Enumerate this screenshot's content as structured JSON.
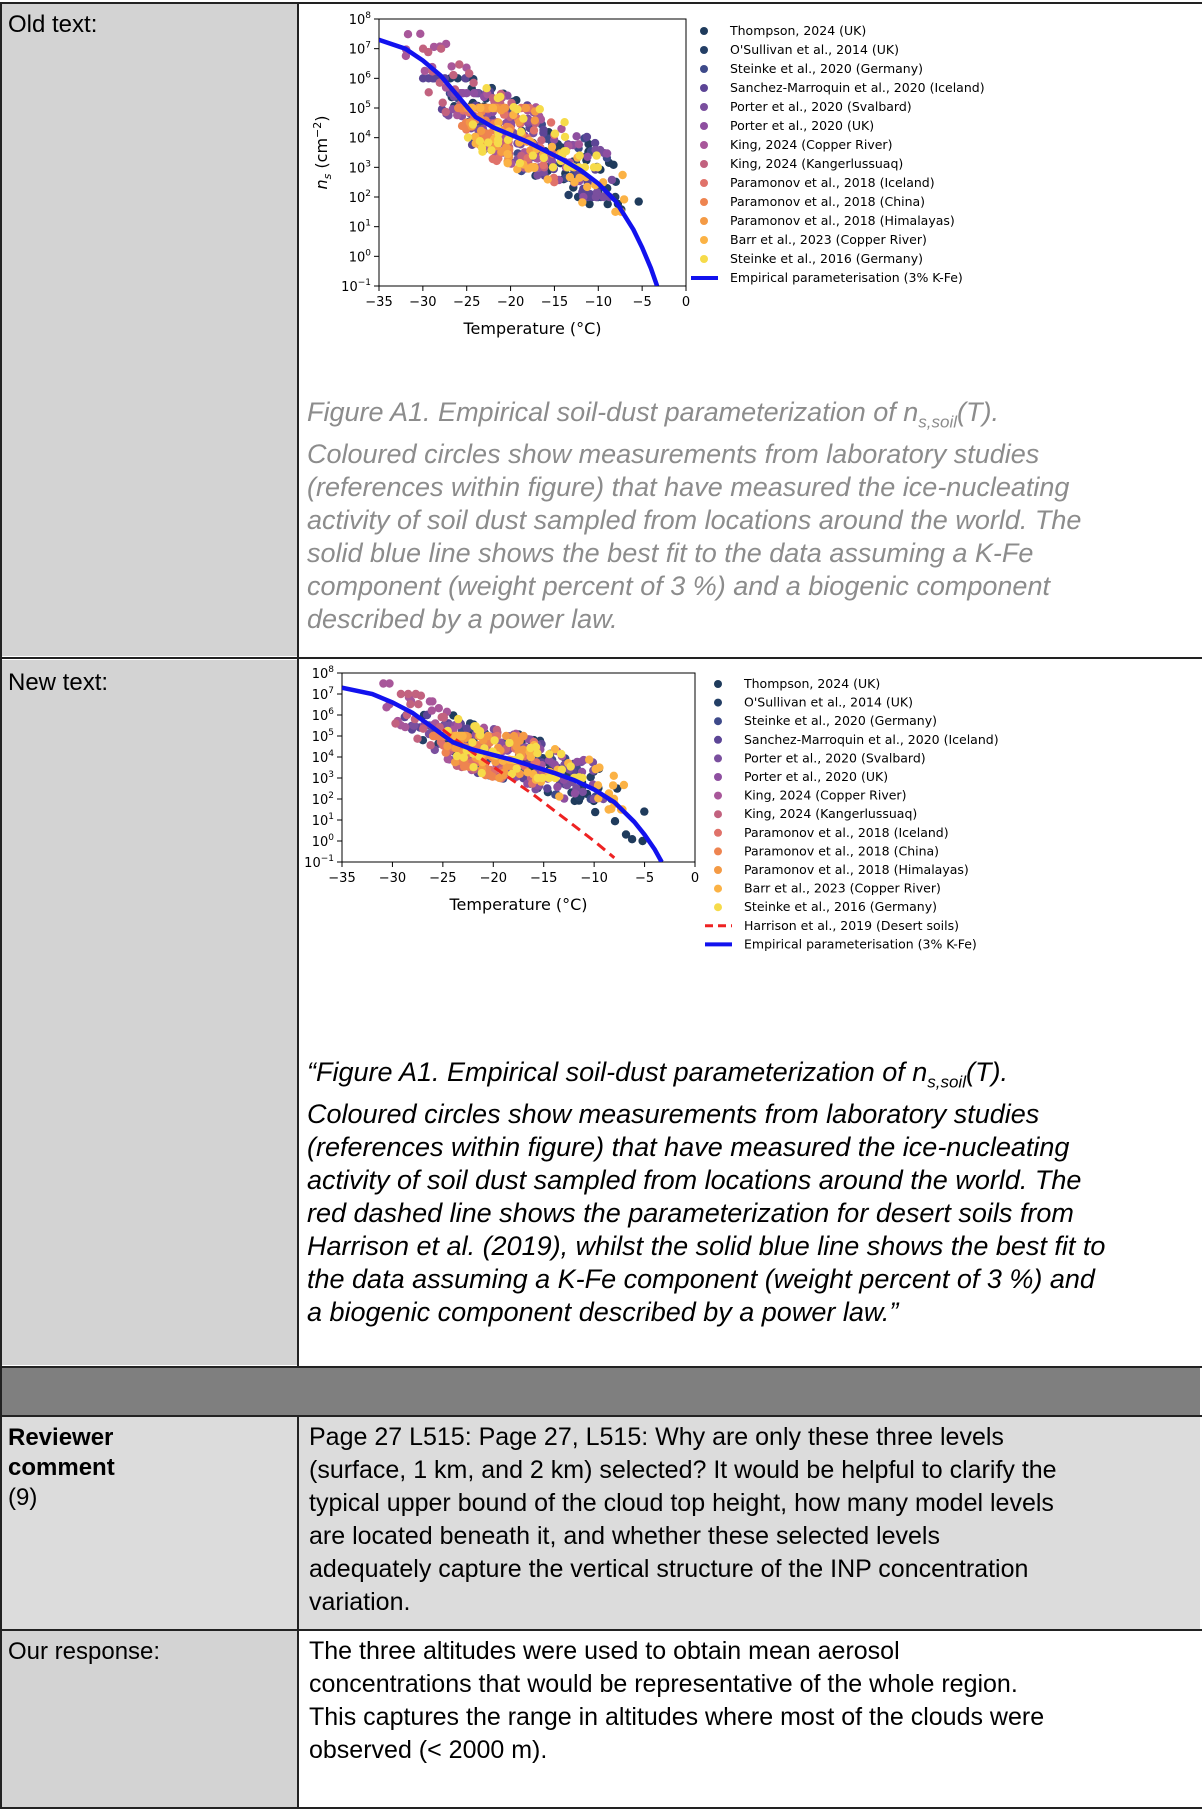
{
  "rows": {
    "old_label": "Old text:",
    "new_label": "New text:",
    "reviewer_label_line1": "Reviewer",
    "reviewer_label_line2": "comment",
    "reviewer_label_num": "(9)",
    "response_label": "Our response:"
  },
  "old_caption": {
    "line1_pre": "Figure A1. Empirical soil-dust parameterization of n",
    "line1_sub": "s,soil",
    "line1_post": "(T).",
    "lines": [
      "Coloured circles show measurements from laboratory studies",
      "(references within figure) that have measured the ice-nucleating",
      "activity of soil dust sampled from locations around the world. The",
      "solid blue line shows the best fit to the data assuming a K-Fe",
      "component (weight percent of 3 %) and a biogenic component",
      "described by a power law."
    ]
  },
  "new_caption": {
    "line1_pre": "“Figure A1. Empirical soil-dust parameterization of n",
    "line1_sub": "s,soil",
    "line1_post": "(T).",
    "lines": [
      "Coloured circles show measurements from laboratory studies",
      "(references within figure) that have measured the ice-nucleating",
      "activity of soil dust sampled from locations around the world. The",
      "red dashed line shows the parameterization for desert soils from",
      "Harrison et al. (2019), whilst the solid blue line shows the best fit to",
      "the data assuming a K-Fe component (weight percent of 3 %) and",
      "a biogenic component described by a power law.”"
    ]
  },
  "reviewer_comment": {
    "lines": [
      "Page 27 L515: Page 27, L515: Why are only these three levels",
      "(surface, 1 km, and 2 km) selected? It would be helpful to clarify the",
      "typical upper bound of the cloud top height, how many model levels",
      "are located beneath it, and whether these selected levels",
      "adequately capture the vertical structure of the INP concentration",
      "variation."
    ]
  },
  "response": {
    "lines": [
      "The three altitudes were used to obtain mean aerosol",
      "concentrations that would be representative of the whole region.",
      "This captures the range in altitudes where most of the clouds were",
      "observed (< 2000 m)."
    ]
  },
  "chart_data": [
    {
      "type": "scatter",
      "xlabel": "Temperature (°C)",
      "ylabel": "n_s (cm^-2)",
      "ylabel_base": "n",
      "ylabel_sub": "s",
      "ylabel_unit_pre": " (cm",
      "ylabel_unit_exp": "−2",
      "ylabel_unit_post": ")",
      "xlim": [
        -35,
        0
      ],
      "ylim": [
        -1,
        8
      ],
      "yscale": "log",
      "x_ticks": [
        "−35",
        "−30",
        "−25",
        "−20",
        "−15",
        "−10",
        "−5",
        "0"
      ],
      "y_tick_exps": [
        "−1",
        "0",
        "1",
        "2",
        "3",
        "4",
        "5",
        "6",
        "7",
        "8"
      ],
      "legend_position": "right",
      "series": [
        {
          "name": "Thompson, 2024 (UK)",
          "color": "#1f3b5c",
          "x_range": [
            -25,
            -5
          ],
          "log_ns_range": [
            0,
            6.5
          ]
        },
        {
          "name": "O'Sullivan et al., 2014 (UK)",
          "color": "#243f66",
          "x_range": [
            -28,
            -8
          ],
          "log_ns_range": [
            2,
            6
          ]
        },
        {
          "name": "Steinke et al., 2020 (Germany)",
          "color": "#3e4a8a",
          "x_range": [
            -27,
            -9
          ],
          "log_ns_range": [
            2,
            5.5
          ]
        },
        {
          "name": "Sanchez-Marroquin et al., 2020 (Iceland)",
          "color": "#5c4596",
          "x_range": [
            -30,
            -10
          ],
          "log_ns_range": [
            2,
            6
          ]
        },
        {
          "name": "Porter et al., 2020 (Svalbard)",
          "color": "#7a4f9e",
          "x_range": [
            -28,
            -8
          ],
          "log_ns_range": [
            2,
            5.5
          ]
        },
        {
          "name": "Porter et al., 2020 (UK)",
          "color": "#8e4fa0",
          "x_range": [
            -27,
            -9
          ],
          "log_ns_range": [
            2,
            5.5
          ]
        },
        {
          "name": "King, 2024 (Copper River)",
          "color": "#a8579a",
          "x_range": [
            -32,
            -12
          ],
          "log_ns_range": [
            3,
            7.5
          ]
        },
        {
          "name": "King, 2024 (Kangerlussuaq)",
          "color": "#c2627f",
          "x_range": [
            -30,
            -15
          ],
          "log_ns_range": [
            3,
            7
          ]
        },
        {
          "name": "Paramonov et al., 2018 (Iceland)",
          "color": "#e0726a",
          "x_range": [
            -26,
            -15
          ],
          "log_ns_range": [
            2.5,
            5
          ]
        },
        {
          "name": "Paramonov et al., 2018 (China)",
          "color": "#ee8450",
          "x_range": [
            -26,
            -20
          ],
          "log_ns_range": [
            2.5,
            5
          ]
        },
        {
          "name": "Paramonov et al., 2018 (Himalayas)",
          "color": "#f49a45",
          "x_range": [
            -25,
            -17
          ],
          "log_ns_range": [
            3,
            5
          ]
        },
        {
          "name": "Barr et al., 2023 (Copper River)",
          "color": "#fbb245",
          "x_range": [
            -25,
            -7
          ],
          "log_ns_range": [
            1.5,
            5
          ]
        },
        {
          "name": "Steinke et al., 2016 (Germany)",
          "color": "#f6db4a",
          "x_range": [
            -25,
            -10
          ],
          "log_ns_range": [
            3,
            7
          ]
        }
      ],
      "lines": [
        {
          "name": "Empirical parameterisation (3% K-Fe)",
          "color": "#1212ee",
          "style": "solid",
          "x": [
            -35,
            -32,
            -30,
            -28,
            -26,
            -24,
            -22,
            -20,
            -18,
            -16,
            -14,
            -12,
            -10,
            -8,
            -6,
            -5,
            -4,
            -3.3
          ],
          "log_ns": [
            7.3,
            7.0,
            6.6,
            6.1,
            5.4,
            4.7,
            4.35,
            4.1,
            3.85,
            3.55,
            3.25,
            2.9,
            2.45,
            1.85,
            0.9,
            0.3,
            -0.4,
            -1
          ]
        }
      ]
    },
    {
      "type": "scatter",
      "xlabel": "Temperature (°C)",
      "ylabel": "n_s (cm^-2)",
      "ylabel_base": "n",
      "ylabel_sub": "s",
      "ylabel_unit_pre": " (cm",
      "ylabel_unit_exp": "−2",
      "ylabel_unit_post": ")",
      "xlim": [
        -35,
        0
      ],
      "ylim": [
        -1,
        8
      ],
      "yscale": "log",
      "x_ticks": [
        "−35",
        "−30",
        "−25",
        "−20",
        "−15",
        "−10",
        "−5",
        "0"
      ],
      "y_tick_exps": [
        "−1",
        "0",
        "1",
        "2",
        "3",
        "4",
        "5",
        "6",
        "7",
        "8"
      ],
      "legend_position": "right",
      "series": [
        {
          "name": "Thompson, 2024 (UK)",
          "color": "#1f3b5c",
          "x_range": [
            -25,
            -5
          ],
          "log_ns_range": [
            0,
            6.5
          ]
        },
        {
          "name": "O'Sullivan et al., 2014 (UK)",
          "color": "#243f66",
          "x_range": [
            -28,
            -8
          ],
          "log_ns_range": [
            2,
            6
          ]
        },
        {
          "name": "Steinke et al., 2020 (Germany)",
          "color": "#3e4a8a",
          "x_range": [
            -27,
            -9
          ],
          "log_ns_range": [
            2,
            5.5
          ]
        },
        {
          "name": "Sanchez-Marroquin et al., 2020 (Iceland)",
          "color": "#5c4596",
          "x_range": [
            -30,
            -10
          ],
          "log_ns_range": [
            2,
            6
          ]
        },
        {
          "name": "Porter et al., 2020 (Svalbard)",
          "color": "#7a4f9e",
          "x_range": [
            -28,
            -8
          ],
          "log_ns_range": [
            2,
            5.5
          ]
        },
        {
          "name": "Porter et al., 2020 (UK)",
          "color": "#8e4fa0",
          "x_range": [
            -27,
            -9
          ],
          "log_ns_range": [
            2,
            5.5
          ]
        },
        {
          "name": "King, 2024 (Copper River)",
          "color": "#a8579a",
          "x_range": [
            -32,
            -12
          ],
          "log_ns_range": [
            3,
            7.5
          ]
        },
        {
          "name": "King, 2024 (Kangerlussuaq)",
          "color": "#c2627f",
          "x_range": [
            -30,
            -15
          ],
          "log_ns_range": [
            3,
            7
          ]
        },
        {
          "name": "Paramonov et al., 2018 (Iceland)",
          "color": "#e0726a",
          "x_range": [
            -26,
            -15
          ],
          "log_ns_range": [
            2.5,
            5
          ]
        },
        {
          "name": "Paramonov et al., 2018 (China)",
          "color": "#ee8450",
          "x_range": [
            -26,
            -20
          ],
          "log_ns_range": [
            2.5,
            5
          ]
        },
        {
          "name": "Paramonov et al., 2018 (Himalayas)",
          "color": "#f49a45",
          "x_range": [
            -25,
            -17
          ],
          "log_ns_range": [
            3,
            5
          ]
        },
        {
          "name": "Barr et al., 2023 (Copper River)",
          "color": "#fbb245",
          "x_range": [
            -25,
            -7
          ],
          "log_ns_range": [
            1.5,
            5
          ]
        },
        {
          "name": "Steinke et al., 2016 (Germany)",
          "color": "#f6db4a",
          "x_range": [
            -25,
            -10
          ],
          "log_ns_range": [
            3,
            7
          ]
        }
      ],
      "lines": [
        {
          "name": "Harrison et al., 2019 (Desert soils)",
          "color": "#ee2222",
          "style": "dashed",
          "x": [
            -25,
            -22,
            -19,
            -16,
            -13,
            -10,
            -8
          ],
          "log_ns": [
            5.3,
            4.2,
            3.2,
            2.2,
            1.1,
            0.0,
            -0.8
          ]
        },
        {
          "name": "Empirical parameterisation (3% K-Fe)",
          "color": "#1212ee",
          "style": "solid",
          "x": [
            -35,
            -32,
            -30,
            -28,
            -26,
            -24,
            -22,
            -20,
            -18,
            -16,
            -14,
            -12,
            -10,
            -8,
            -6,
            -5,
            -4,
            -3.3
          ],
          "log_ns": [
            7.3,
            7.0,
            6.6,
            6.1,
            5.4,
            4.7,
            4.35,
            4.1,
            3.85,
            3.55,
            3.25,
            2.9,
            2.45,
            1.85,
            0.9,
            0.3,
            -0.4,
            -1
          ]
        }
      ]
    }
  ]
}
